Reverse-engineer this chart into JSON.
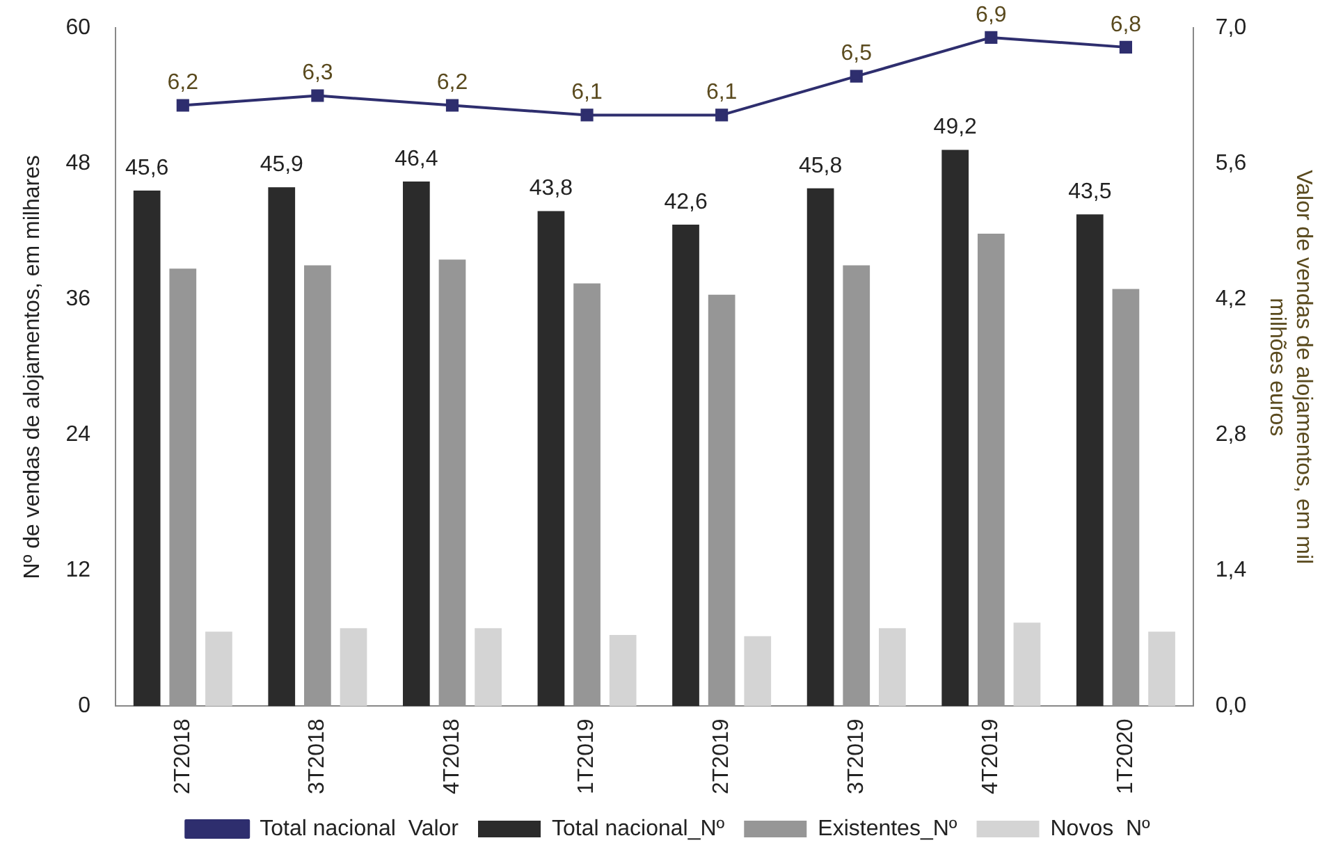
{
  "chart_data": {
    "type": "bar",
    "categories": [
      "2T2018",
      "3T2018",
      "4T2018",
      "1T2019",
      "2T2019",
      "3T2019",
      "4T2019",
      "1T2020"
    ],
    "ylabel": "Nº de vendas de alojamentos, em milhares",
    "y2label": "Valor de vendas de alojamentos, em mil milhões euros",
    "ylim": [
      0,
      60
    ],
    "yticks": [
      0,
      12,
      24,
      36,
      48,
      60
    ],
    "y2lim": [
      0,
      7
    ],
    "y2ticks": [
      {
        "value": 0,
        "label": "0,0"
      },
      {
        "value": 1.4,
        "label": "1,4"
      },
      {
        "value": 2.8,
        "label": "2,8"
      },
      {
        "value": 4.2,
        "label": "4,2"
      },
      {
        "value": 5.6,
        "label": "5,6"
      },
      {
        "value": 7,
        "label": "7,0"
      }
    ],
    "grid": false,
    "legend": "bottom",
    "series": [
      {
        "name": "Total nacional_Nº",
        "color": "#2b2b2b",
        "values": [
          45.6,
          45.9,
          46.4,
          43.8,
          42.6,
          45.8,
          49.2,
          43.5
        ],
        "value_labels": [
          "45,6",
          "45,9",
          "46,4",
          "43,8",
          "42,6",
          "45,8",
          "49,2",
          "43,5"
        ]
      },
      {
        "name": "Existentes_Nº",
        "color": "#969696",
        "values": [
          38.7,
          39.0,
          39.5,
          37.4,
          36.4,
          39.0,
          41.8,
          36.9
        ]
      },
      {
        "name": "Novos  Nº",
        "color": "#d4d4d4",
        "values": [
          6.6,
          6.9,
          6.9,
          6.3,
          6.2,
          6.9,
          7.4,
          6.6
        ]
      },
      {
        "name": "Total nacional  Valor",
        "color": "#2e2e6e",
        "type": "line",
        "axis": "y2",
        "marker": "square",
        "line_style": "solid",
        "values": [
          6.2,
          6.3,
          6.2,
          6.1,
          6.1,
          6.5,
          6.9,
          6.8
        ],
        "value_labels": [
          "6,2",
          "6,3",
          "6,2",
          "6,1",
          "6,1",
          "6,5",
          "6,9",
          "6,8"
        ]
      }
    ]
  }
}
